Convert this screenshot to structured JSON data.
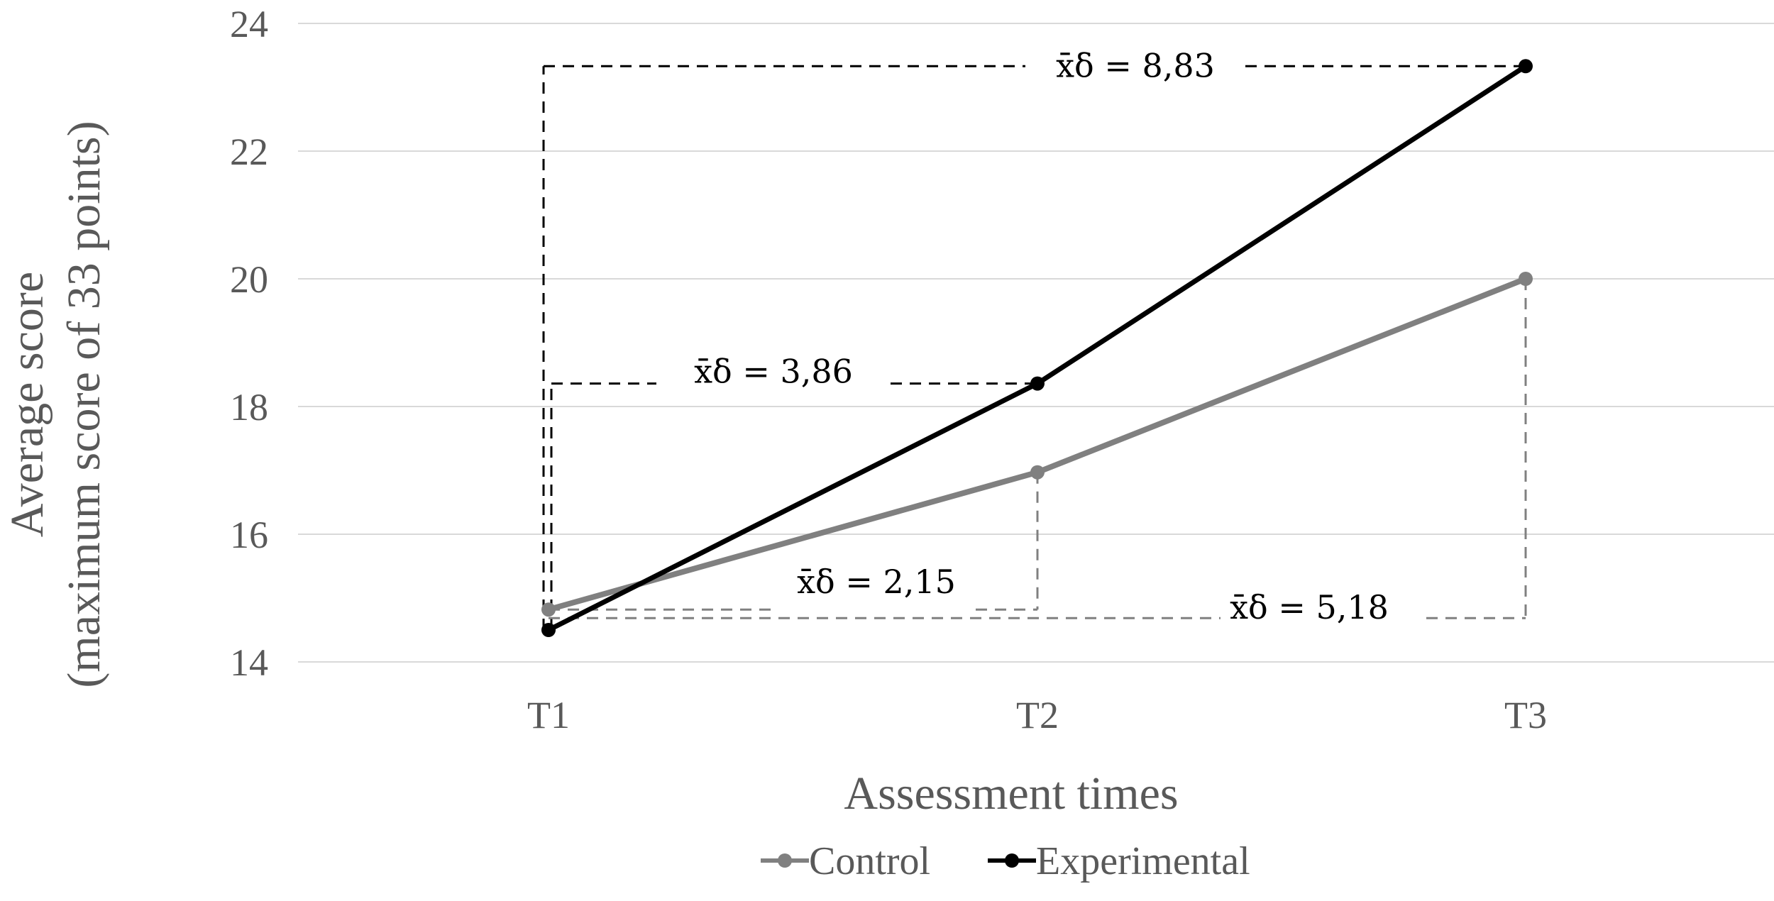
{
  "chart_data": {
    "type": "line",
    "title": "",
    "xlabel": "Assessment times",
    "ylabel_line1": "Average score",
    "ylabel_line2": "(maximum score  of 33 points)",
    "categories": [
      "T1",
      "T2",
      "T3"
    ],
    "ylim": [
      14,
      24
    ],
    "yticks": [
      14,
      16,
      18,
      20,
      22,
      24
    ],
    "grid": true,
    "legend_position": "bottom",
    "series": [
      {
        "name": "Control",
        "values": [
          14.82,
          16.97,
          20.0
        ],
        "color": "#808080"
      },
      {
        "name": "Experimental",
        "values": [
          14.5,
          18.36,
          23.33
        ],
        "color": "#000000"
      }
    ],
    "annotations": [
      {
        "text": "x̄δ = 8,83",
        "series": "Experimental",
        "from": "T1",
        "to": "T3"
      },
      {
        "text": "x̄δ = 3,86",
        "series": "Experimental",
        "from": "T1",
        "to": "T2"
      },
      {
        "text": "x̄δ = 2,15",
        "series": "Control",
        "from": "T1",
        "to": "T2"
      },
      {
        "text": "x̄δ = 5,18",
        "series": "Control",
        "from": "T1",
        "to": "T3"
      }
    ]
  }
}
